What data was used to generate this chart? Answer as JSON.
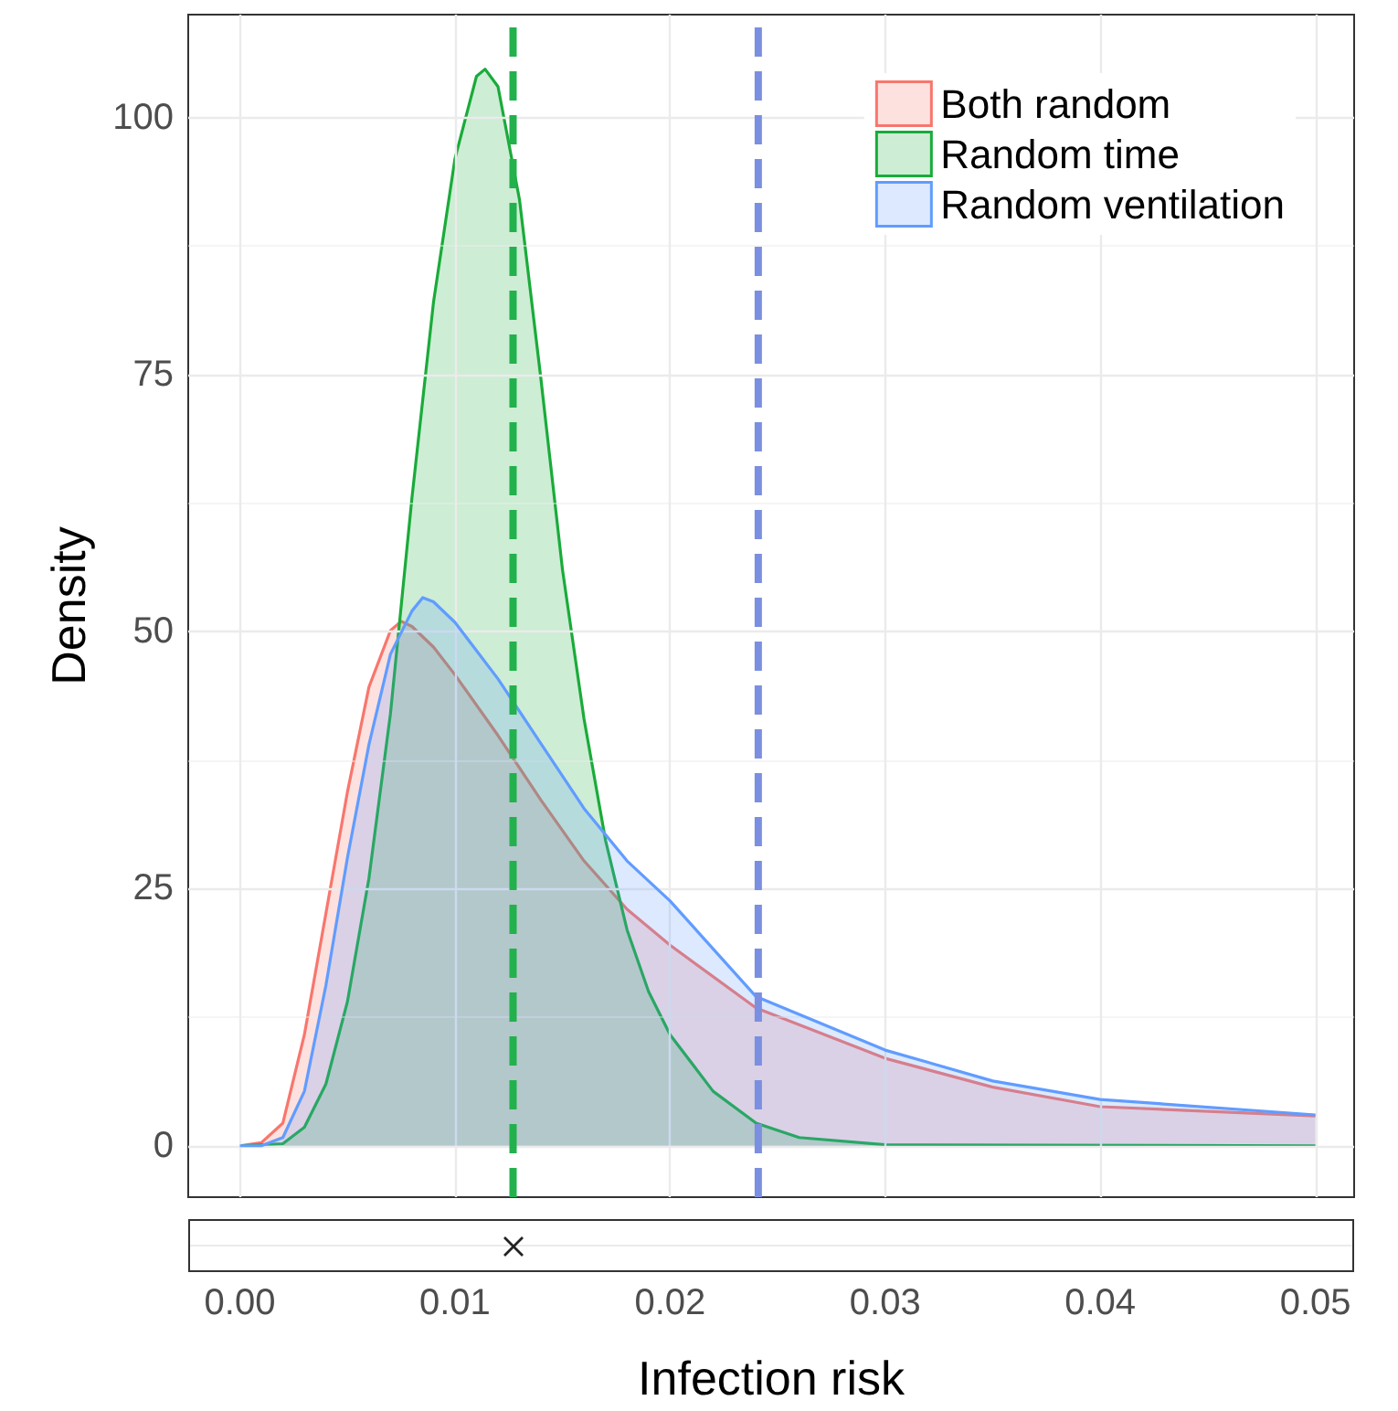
{
  "chart_data": [
    {
      "type": "area",
      "ylabel": "Density",
      "xlabel": "Infection risk",
      "xlim": [
        -0.0024,
        0.0518
      ],
      "ylim": [
        -5,
        110
      ],
      "xticks": [
        {
          "value": 0,
          "label": "0.00"
        },
        {
          "value": 0.01,
          "label": "0.01"
        },
        {
          "value": 0.02,
          "label": "0.02"
        },
        {
          "value": 0.03,
          "label": "0.03"
        },
        {
          "value": 0.04,
          "label": "0.04"
        },
        {
          "value": 0.05,
          "label": "0.05"
        }
      ],
      "yticks": [
        0,
        25,
        50,
        75,
        100
      ],
      "grid": true,
      "legend": "top right",
      "line_style": "solid",
      "marker": "none",
      "series": [
        {
          "name": "Both random",
          "color": "#f8766d",
          "x": [
            0,
            0.001,
            0.002,
            0.003,
            0.004,
            0.005,
            0.006,
            0.007,
            0.0075,
            0.008,
            0.009,
            0.01,
            0.012,
            0.014,
            0.016,
            0.018,
            0.02,
            0.024,
            0.03,
            0.035,
            0.04,
            0.05
          ],
          "values": [
            0,
            0.3,
            2.2,
            10.8,
            22.6,
            34.4,
            44.6,
            50.1,
            51,
            50.5,
            48.5,
            45.8,
            39.9,
            33.6,
            27.7,
            23,
            19.5,
            13.4,
            8.5,
            5.7,
            3.8,
            2.9
          ]
        },
        {
          "name": "Random time",
          "color": "#1aab3a",
          "x": [
            0,
            0.002,
            0.003,
            0.004,
            0.005,
            0.006,
            0.007,
            0.008,
            0.009,
            0.01,
            0.011,
            0.0114,
            0.012,
            0.013,
            0.014,
            0.015,
            0.016,
            0.017,
            0.018,
            0.019,
            0.02,
            0.022,
            0.024,
            0.026,
            0.03,
            0.05
          ],
          "values": [
            0,
            0.2,
            1.8,
            6,
            14,
            26,
            42,
            63,
            82,
            96,
            104,
            104.7,
            103,
            92,
            74.5,
            56,
            41.5,
            29.7,
            21,
            15,
            10.8,
            5.3,
            2.2,
            0.8,
            0.1,
            0
          ]
        },
        {
          "name": "Random ventilation",
          "color": "#619cff",
          "x": [
            0,
            0.001,
            0.002,
            0.003,
            0.004,
            0.005,
            0.006,
            0.007,
            0.008,
            0.0085,
            0.009,
            0.01,
            0.012,
            0.014,
            0.016,
            0.018,
            0.02,
            0.024,
            0.03,
            0.035,
            0.04,
            0.05
          ],
          "values": [
            0,
            0,
            0.8,
            5.3,
            15.6,
            28,
            39,
            47.8,
            52,
            53.3,
            52.9,
            50.9,
            45.4,
            39.1,
            32.8,
            27.7,
            23.8,
            14.5,
            9.3,
            6.3,
            4.5,
            3
          ]
        }
      ],
      "ref_lines": [
        {
          "axis": "x",
          "value": 0.0127,
          "color": "#22b14c",
          "line_style": "dashed"
        },
        {
          "axis": "x",
          "value": 0.0241,
          "color": "#7b8fe0",
          "line_style": "dashed"
        }
      ]
    }
  ]
}
